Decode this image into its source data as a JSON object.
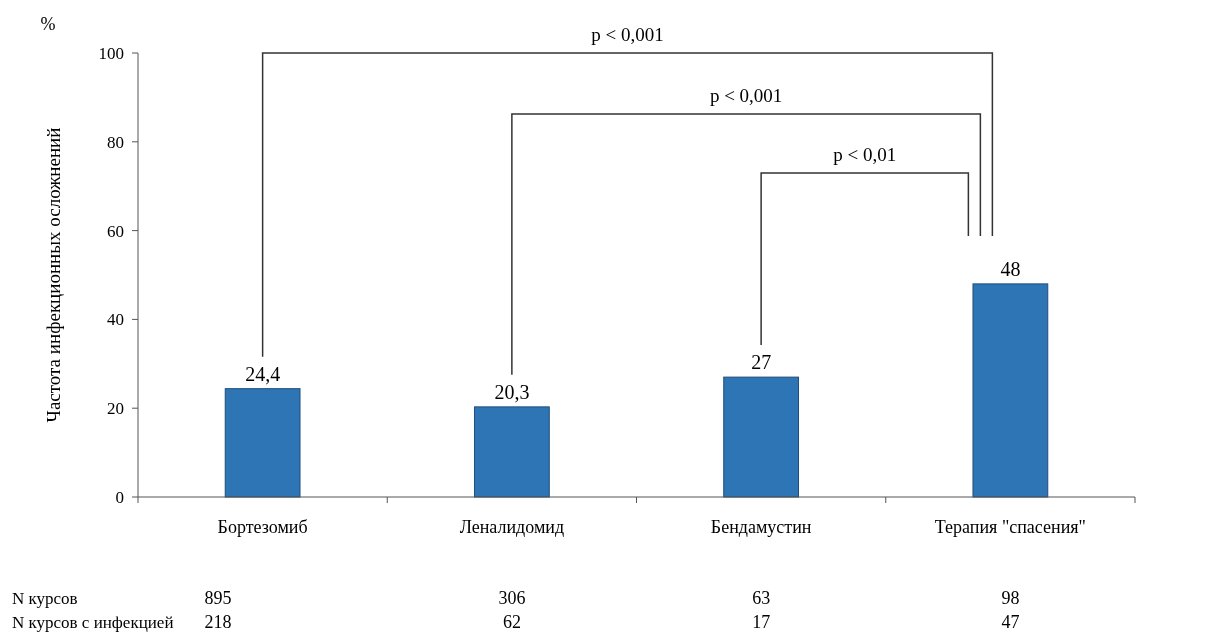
{
  "chart_data": {
    "type": "bar",
    "ylabel": "Частота инфекционных осложнений",
    "categories": [
      "Бортезомиб",
      "Леналидомид",
      "Бендамустин",
      "Терапия \"спасения\""
    ],
    "values": [
      24.4,
      20.3,
      27,
      48
    ],
    "color": "#2e75b6",
    "value_labels": [
      "24,4",
      "20,3",
      "27",
      "48"
    ],
    "ylim": [
      0,
      100
    ],
    "yticks": [
      0,
      20,
      40,
      60,
      80,
      100
    ],
    "grid": false,
    "annotations": [
      "%",
      "p < 0,001",
      "p < 0,001",
      "p < 0,01",
      "N курсов",
      "895",
      "306",
      "63",
      "98",
      "N курсов с инфекцией",
      "218",
      "62",
      "17",
      "47"
    ]
  }
}
